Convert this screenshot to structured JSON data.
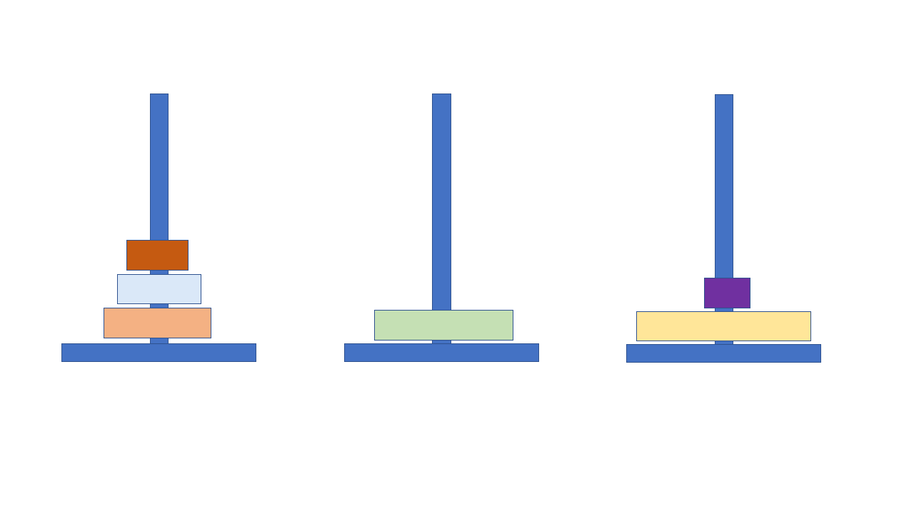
{
  "colors": {
    "peg": "#4472c4",
    "outline": "#2f528f"
  },
  "towers": [
    {
      "name": "tower-1",
      "disks": [
        {
          "name": "disk-orange-dark",
          "color": "#c55a11"
        },
        {
          "name": "disk-light-blue",
          "color": "#dae8f8"
        },
        {
          "name": "disk-peach",
          "color": "#f4b183"
        }
      ]
    },
    {
      "name": "tower-2",
      "disks": [
        {
          "name": "disk-light-green",
          "color": "#c5e0b4"
        }
      ]
    },
    {
      "name": "tower-3",
      "disks": [
        {
          "name": "disk-purple",
          "color": "#7030a0"
        },
        {
          "name": "disk-light-yellow",
          "color": "#ffe699"
        }
      ]
    }
  ]
}
